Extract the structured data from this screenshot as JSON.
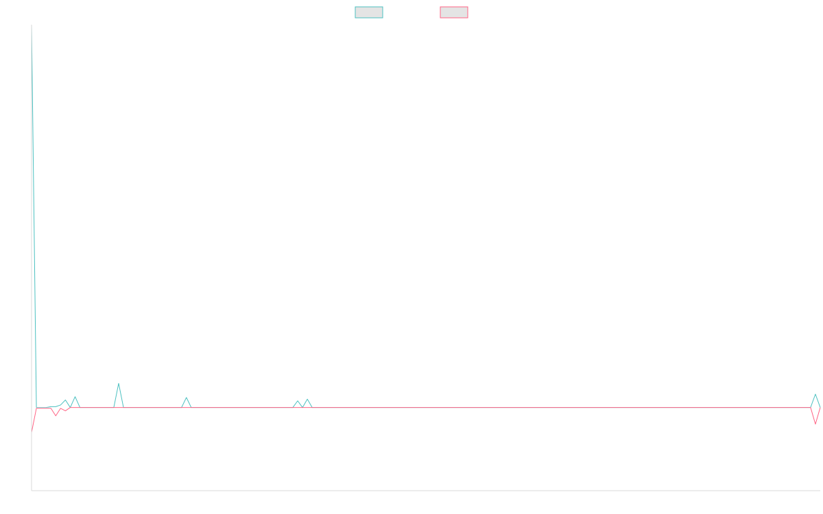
{
  "chart_data": {
    "type": "line",
    "title": "",
    "xlabel": "",
    "ylabel": "",
    "grid": false,
    "legend_position": "top-center",
    "axis_color": "#d9d9d9",
    "x_count": 164,
    "ylim": [
      -100,
      460
    ],
    "series": [
      {
        "name": "",
        "color": "#4bc0c0",
        "fill": "#e4e4e4",
        "values": [
          460,
          0,
          0,
          0,
          1,
          1,
          3,
          9,
          0,
          13,
          0,
          0,
          0,
          0,
          0,
          0,
          0,
          0,
          29,
          0,
          0,
          0,
          0,
          0,
          0,
          0,
          0,
          0,
          0,
          0,
          0,
          0,
          12,
          0,
          0,
          0,
          0,
          0,
          0,
          0,
          0,
          0,
          0,
          0,
          0,
          0,
          0,
          0,
          0,
          0,
          0,
          0,
          0,
          0,
          0,
          8,
          0,
          10,
          0,
          0,
          0,
          0,
          0,
          0,
          0,
          0,
          0,
          0,
          0,
          0,
          0,
          0,
          0,
          0,
          0,
          0,
          0,
          0,
          0,
          0,
          0,
          0,
          0,
          0,
          0,
          0,
          0,
          0,
          0,
          0,
          0,
          0,
          0,
          0,
          0,
          0,
          0,
          0,
          0,
          0,
          0,
          0,
          0,
          0,
          0,
          0,
          0,
          0,
          0,
          0,
          0,
          0,
          0,
          0,
          0,
          0,
          0,
          0,
          0,
          0,
          0,
          0,
          0,
          0,
          0,
          0,
          0,
          0,
          0,
          0,
          0,
          0,
          0,
          0,
          0,
          0,
          0,
          0,
          0,
          0,
          0,
          0,
          0,
          0,
          0,
          0,
          0,
          0,
          0,
          0,
          0,
          0,
          0,
          0,
          0,
          0,
          0,
          0,
          0,
          0,
          0,
          0,
          16,
          0
        ]
      },
      {
        "name": "",
        "color": "#ff6384",
        "fill": "#e4e4e4",
        "values": [
          -30,
          -1,
          -1,
          -1,
          -1,
          -10,
          -1,
          -4,
          0,
          0,
          0,
          0,
          0,
          0,
          0,
          0,
          0,
          0,
          0,
          0,
          0,
          0,
          0,
          0,
          0,
          0,
          0,
          0,
          0,
          0,
          0,
          0,
          0,
          0,
          0,
          0,
          0,
          0,
          0,
          0,
          0,
          0,
          0,
          0,
          0,
          0,
          0,
          0,
          0,
          0,
          0,
          0,
          0,
          0,
          0,
          0,
          0,
          0,
          0,
          0,
          0,
          0,
          0,
          0,
          0,
          0,
          0,
          0,
          0,
          0,
          0,
          0,
          0,
          0,
          0,
          0,
          0,
          0,
          0,
          0,
          0,
          0,
          0,
          0,
          0,
          0,
          0,
          0,
          0,
          0,
          0,
          0,
          0,
          0,
          0,
          0,
          0,
          0,
          0,
          0,
          0,
          0,
          0,
          0,
          0,
          0,
          0,
          0,
          0,
          0,
          0,
          0,
          0,
          0,
          0,
          0,
          0,
          0,
          0,
          0,
          0,
          0,
          0,
          0,
          0,
          0,
          0,
          0,
          0,
          0,
          0,
          0,
          0,
          0,
          0,
          0,
          0,
          0,
          0,
          0,
          0,
          0,
          0,
          0,
          0,
          0,
          0,
          0,
          0,
          0,
          0,
          0,
          0,
          0,
          0,
          0,
          0,
          0,
          0,
          0,
          0,
          0,
          -20,
          0
        ]
      }
    ]
  }
}
